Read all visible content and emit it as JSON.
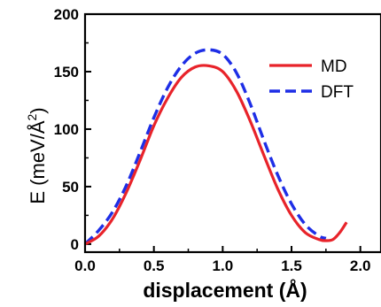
{
  "chart_data": {
    "type": "line",
    "xlabel": "displacement (Å)",
    "ylabel_main": "E (meV/Å",
    "ylabel_sup": "2",
    "ylabel_close": ")",
    "xlim": [
      0.0,
      2.15
    ],
    "ylim": [
      -7,
      200
    ],
    "x_ticks": [
      0.0,
      0.5,
      1.0,
      1.5,
      2.0
    ],
    "x_tick_labels": [
      "0.0",
      "0.5",
      "1.0",
      "1.5",
      "2.0"
    ],
    "y_ticks": [
      0,
      50,
      100,
      150,
      200
    ],
    "y_tick_labels": [
      "0",
      "50",
      "100",
      "150",
      "200"
    ],
    "legend_position": "top-right",
    "series": [
      {
        "name": "MD",
        "color": "#e8232a",
        "style": "solid",
        "x": [
          0.0,
          0.1,
          0.2,
          0.3,
          0.4,
          0.5,
          0.6,
          0.7,
          0.8,
          0.9,
          1.0,
          1.1,
          1.2,
          1.3,
          1.4,
          1.5,
          1.6,
          1.7,
          1.75,
          1.8,
          1.85,
          1.9
        ],
        "y": [
          0,
          7,
          22,
          45,
          73,
          103,
          127,
          145,
          154,
          155,
          150,
          133,
          107,
          77,
          48,
          25,
          10,
          4,
          3,
          4,
          10,
          19
        ]
      },
      {
        "name": "DFT",
        "color": "#1e2ee6",
        "style": "dashed",
        "x": [
          0.0,
          0.1,
          0.2,
          0.3,
          0.4,
          0.5,
          0.6,
          0.7,
          0.8,
          0.9,
          1.0,
          1.1,
          1.2,
          1.3,
          1.4,
          1.5,
          1.6,
          1.7,
          1.75
        ],
        "y": [
          0,
          12,
          28,
          51,
          80,
          110,
          136,
          155,
          166,
          169,
          165,
          149,
          122,
          90,
          60,
          35,
          17,
          7,
          5
        ]
      }
    ]
  }
}
